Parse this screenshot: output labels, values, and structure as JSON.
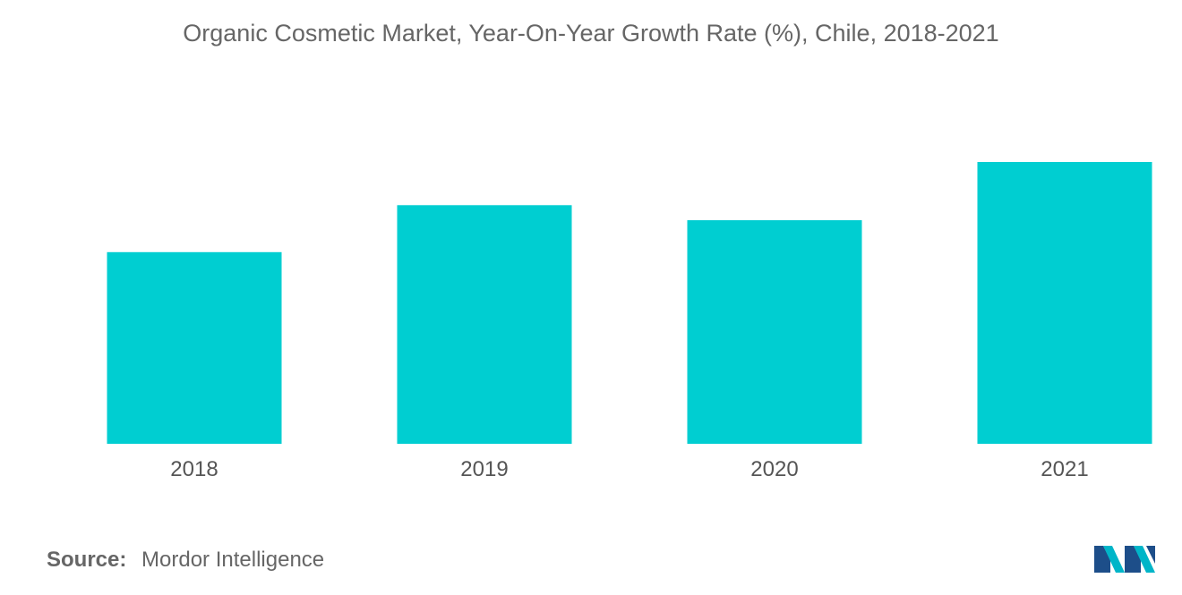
{
  "chart_data": {
    "type": "bar",
    "title": "Organic Cosmetic Market, Year-On-Year Growth Rate (%), Chile, 2018-2021",
    "xlabel": "",
    "ylabel": "",
    "categories": [
      "2018",
      "2019",
      "2020",
      "2021"
    ],
    "values": [
      5.1,
      6.35,
      5.95,
      7.5
    ],
    "ylim": [
      0,
      10
    ],
    "bar_color": "#00CED1",
    "grid": false,
    "legend": "none",
    "axis_labels_color": "#555555"
  },
  "source": {
    "label": "Source:",
    "text": "Mordor Intelligence"
  },
  "logo": {
    "icon": "mordor-intelligence-logo-icon",
    "colors": [
      "#1D4E89",
      "#00B5C8"
    ]
  }
}
